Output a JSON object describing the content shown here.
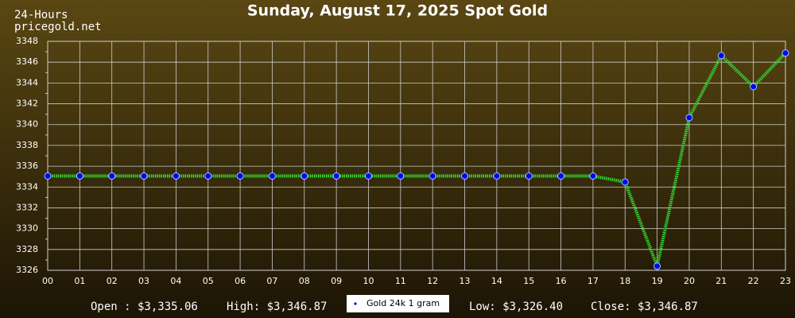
{
  "chart_data": {
    "type": "line",
    "title": "Sunday, August 17, 2025 Spot Gold",
    "period_label": "24-Hours",
    "source": "pricegold.net",
    "categories": [
      "00",
      "01",
      "02",
      "03",
      "04",
      "05",
      "06",
      "07",
      "08",
      "09",
      "10",
      "11",
      "12",
      "13",
      "14",
      "15",
      "16",
      "17",
      "18",
      "19",
      "20",
      "21",
      "22",
      "23"
    ],
    "series": [
      {
        "name": "Gold 24k 1 gram",
        "color": "#0000ff",
        "line_color": "#33dd33",
        "values": [
          3335.06,
          3335.06,
          3335.06,
          3335.06,
          3335.06,
          3335.06,
          3335.06,
          3335.06,
          3335.06,
          3335.06,
          3335.06,
          3335.06,
          3335.06,
          3335.06,
          3335.06,
          3335.06,
          3335.06,
          3335.06,
          3334.48,
          3326.4,
          3340.67,
          3346.63,
          3343.65,
          3346.87
        ]
      }
    ],
    "ylim": [
      3326,
      3348
    ],
    "yticks": [
      3326,
      3328,
      3330,
      3332,
      3334,
      3336,
      3338,
      3340,
      3342,
      3344,
      3346,
      3348
    ],
    "grid": true,
    "stats": {
      "open": "Open : $3,335.06",
      "high": "High: $3,346.87",
      "low": "Low: $3,326.40",
      "close": "Close: $3,346.87"
    }
  }
}
